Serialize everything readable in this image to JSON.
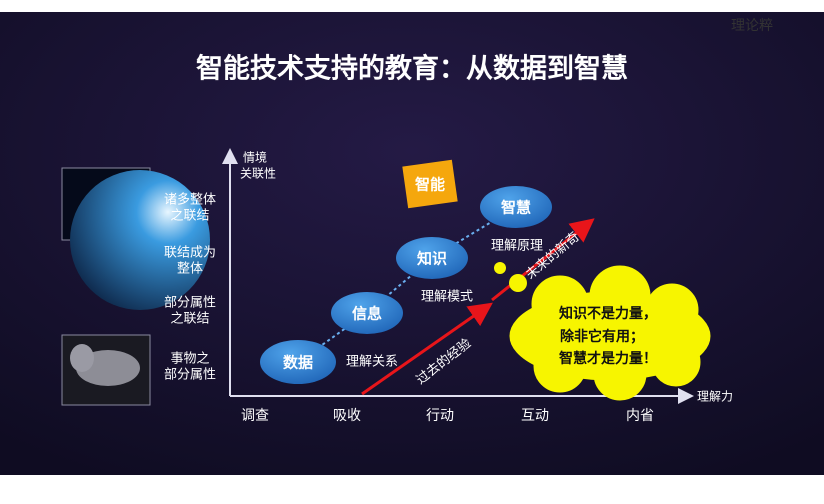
{
  "watermark": "理论粹",
  "title": "智能技术支持的教育：从数据到智慧",
  "y_axis": {
    "label": [
      "情境",
      "关联性"
    ],
    "levels": [
      [
        "诸多整体",
        "之联结"
      ],
      [
        "联结成为",
        "整体"
      ],
      [
        "部分属性",
        "之联结"
      ],
      [
        "事物之",
        "部分属性"
      ]
    ]
  },
  "x_axis": {
    "label": "理解力",
    "levels": [
      "调查",
      "吸收",
      "行动",
      "互动",
      "内省"
    ]
  },
  "nodes": [
    {
      "label": "数据"
    },
    {
      "label": "信息"
    },
    {
      "label": "知识"
    },
    {
      "label": "智慧"
    },
    {
      "label": "智能"
    }
  ],
  "relations": [
    "理解关系",
    "理解模式",
    "理解原理"
  ],
  "arrows": [
    "过去的经验",
    "未来的新奇"
  ],
  "callout": [
    "知识不是力量，",
    "除非它有用；",
    "智慧才是力量！"
  ]
}
